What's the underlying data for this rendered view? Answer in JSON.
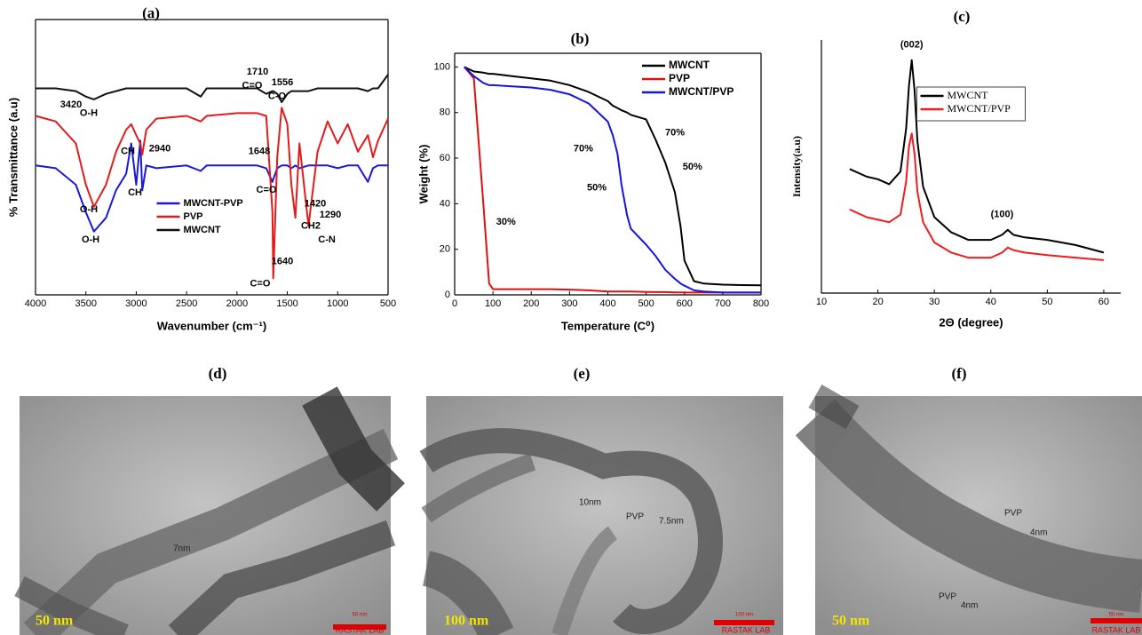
{
  "chart_data": [
    {
      "type": "line",
      "title": "(a)",
      "x_label": "Wavenumber (cm⁻¹)",
      "y_label": "% Transmittance (a.u)",
      "xlim": [
        4000,
        500
      ],
      "xticks": [
        4000,
        3500,
        3000,
        2500,
        2000,
        1500,
        1000,
        500
      ],
      "ylim": [
        0,
        100
      ],
      "frame": true,
      "legend": "lower center",
      "x": [
        4000,
        3800,
        3600,
        3500,
        3420,
        3300,
        3200,
        3100,
        3050,
        3000,
        2960,
        2940,
        2900,
        2800,
        2500,
        2360,
        2300,
        2000,
        1800,
        1710,
        1648,
        1640,
        1600,
        1556,
        1500,
        1460,
        1420,
        1380,
        1290,
        1200,
        1100,
        1000,
        900,
        800,
        700,
        650,
        600,
        500
      ],
      "series": [
        {
          "name": "MWCNT-PVP",
          "color": "#1a1ad6",
          "values": [
            47,
            46,
            40,
            30,
            23,
            28,
            38,
            44,
            55,
            40,
            56,
            38,
            47,
            46,
            47,
            45,
            47,
            47,
            47,
            46,
            41,
            42,
            46,
            47,
            47,
            46,
            47,
            46,
            47,
            47,
            47,
            46,
            47,
            47,
            41,
            46,
            47,
            47
          ]
        },
        {
          "name": "PVP",
          "color": "#e01c1c",
          "values": [
            65,
            63,
            55,
            40,
            32,
            40,
            52,
            60,
            62,
            58,
            55,
            51,
            60,
            64,
            65,
            63,
            65,
            66,
            66,
            65,
            30,
            6,
            50,
            68,
            62,
            40,
            28,
            55,
            25,
            52,
            63,
            55,
            62,
            52,
            58,
            50,
            56,
            64
          ]
        },
        {
          "name": "MWCNT",
          "color": "#111111",
          "values": [
            75,
            75,
            74,
            72,
            71,
            73,
            74,
            75,
            75,
            75,
            75,
            75,
            75,
            75,
            75,
            72,
            75,
            75,
            75,
            73,
            74,
            74,
            73,
            70,
            73,
            74,
            74,
            74,
            74,
            75,
            75,
            75,
            75,
            75,
            74,
            75,
            75,
            80
          ]
        }
      ],
      "annotations": [
        {
          "text": "3420",
          "x": 3647,
          "y": 69
        },
        {
          "text": "O-H",
          "x": 3471,
          "y": 66
        },
        {
          "text": "1710",
          "x": 1796,
          "y": 81
        },
        {
          "text": "C=O",
          "x": 1849,
          "y": 76
        },
        {
          "text": "1556",
          "x": 1549,
          "y": 77
        },
        {
          "text": "C-O",
          "x": 1602,
          "y": 72
        },
        {
          "text": "2940",
          "x": 2766,
          "y": 53
        },
        {
          "text": "CH",
          "x": 3083,
          "y": 52
        },
        {
          "text": "CH",
          "x": 3012,
          "y": 37
        },
        {
          "text": "1648",
          "x": 1778,
          "y": 52
        },
        {
          "text": "C=O",
          "x": 1708,
          "y": 38
        },
        {
          "text": "O-H",
          "x": 3471,
          "y": 31
        },
        {
          "text": "O-H",
          "x": 3453,
          "y": 20
        },
        {
          "text": "1420",
          "x": 1223,
          "y": 33
        },
        {
          "text": "CH2",
          "x": 1267,
          "y": 25
        },
        {
          "text": "1290",
          "x": 1073,
          "y": 29
        },
        {
          "text": "C-N",
          "x": 1108,
          "y": 20
        },
        {
          "text": "1640",
          "x": 1549,
          "y": 12
        },
        {
          "text": "C=O",
          "x": 1770,
          "y": 4
        }
      ]
    },
    {
      "type": "line",
      "title": "(b)",
      "x_label": "Temperature (C⁰)",
      "y_label": "Weight (%)",
      "xlim": [
        0,
        800
      ],
      "xticks": [
        0,
        100,
        200,
        300,
        400,
        500,
        600,
        700,
        800
      ],
      "ylim": [
        0,
        106
      ],
      "yticks": [
        0,
        20,
        40,
        60,
        80,
        100
      ],
      "frame": true,
      "legend": "upper right",
      "x": [
        25,
        50,
        75,
        90,
        100,
        150,
        200,
        250,
        300,
        350,
        400,
        413,
        425,
        436,
        450,
        460,
        500,
        525,
        550,
        575,
        590,
        600,
        625,
        650,
        700,
        750,
        800
      ],
      "series": [
        {
          "name": "MWCNT",
          "color": "#000000",
          "values": [
            100,
            98,
            97.5,
            97,
            97,
            96,
            95,
            94,
            92,
            89,
            85,
            83,
            82,
            81,
            80,
            79,
            77,
            68,
            58,
            45,
            30,
            15,
            6,
            5,
            4.5,
            4.3,
            4.2
          ]
        },
        {
          "name": "PVP",
          "color": "#e01010",
          "values": [
            100,
            95,
            40,
            5,
            2.5,
            2.5,
            2.5,
            2.5,
            2.3,
            2,
            1.5,
            1.5,
            1.5,
            1.5,
            1.5,
            1.5,
            1.3,
            1.2,
            1.2,
            1.1,
            1.1,
            1,
            1,
            1,
            1,
            1,
            1
          ]
        },
        {
          "name": "MWCNT/PVP",
          "color": "#1515e0",
          "values": [
            100,
            96,
            93,
            92,
            92,
            91.5,
            91,
            90,
            88,
            84,
            76,
            70,
            62,
            48,
            35,
            29,
            22,
            17,
            11,
            7,
            5,
            4,
            2,
            1.5,
            1,
            1,
            1
          ]
        }
      ],
      "annotations": [
        {
          "text": "70%",
          "x": 336,
          "y": 64
        },
        {
          "text": "50%",
          "x": 371,
          "y": 47
        },
        {
          "text": "30%",
          "x": 134,
          "y": 32
        },
        {
          "text": "70%",
          "x": 575,
          "y": 71
        },
        {
          "text": "50%",
          "x": 621,
          "y": 56
        }
      ]
    },
    {
      "type": "line",
      "title": "(c)",
      "x_label": "2Θ (degree)",
      "y_label": "Intensity(a.u)",
      "xlim": [
        10,
        63
      ],
      "xticks": [
        10,
        20,
        30,
        40,
        50,
        60
      ],
      "ylim": [
        0,
        100
      ],
      "frame": false,
      "legend": "upper center",
      "x": [
        15,
        18,
        20,
        22,
        24,
        25,
        25.5,
        26,
        26.5,
        27,
        28,
        30,
        33,
        36,
        40,
        42,
        43,
        44,
        46,
        50,
        55,
        60
      ],
      "series": [
        {
          "name": "MWCNT",
          "color": "#000000",
          "values": [
            49,
            46,
            45,
            43,
            48,
            65,
            82,
            92,
            80,
            60,
            42,
            30,
            24,
            21,
            21,
            23,
            25,
            23,
            22,
            21,
            19,
            16
          ]
        },
        {
          "name": "MWCNT/PVP",
          "color": "#ee1c1c",
          "values": [
            33,
            30,
            29,
            28,
            31,
            44,
            58,
            63,
            55,
            40,
            28,
            20,
            16,
            14,
            14,
            16,
            18,
            17,
            16,
            15,
            14,
            13
          ]
        }
      ],
      "annotations": [
        {
          "text": "(002)",
          "x": 26,
          "y": 98
        },
        {
          "text": "(100)",
          "x": 42,
          "y": 31
        }
      ]
    }
  ],
  "images": [
    {
      "label": "(d)",
      "scale": "50 nm",
      "scale_bar": "50 nm",
      "watermark": "RASTAK LAB",
      "annotations": [
        "7nm"
      ]
    },
    {
      "label": "(e)",
      "scale": "100 nm",
      "scale_bar": "100 nm",
      "watermark": "RASTAK LAB",
      "annotations": [
        "10nm",
        "PVP",
        "7.5nm"
      ]
    },
    {
      "label": "(f)",
      "scale": "50 nm",
      "scale_bar": "50 nm",
      "watermark": "RASTAK LAB",
      "annotations": [
        "PVP",
        "4nm",
        "PVP",
        "4nm"
      ]
    }
  ]
}
